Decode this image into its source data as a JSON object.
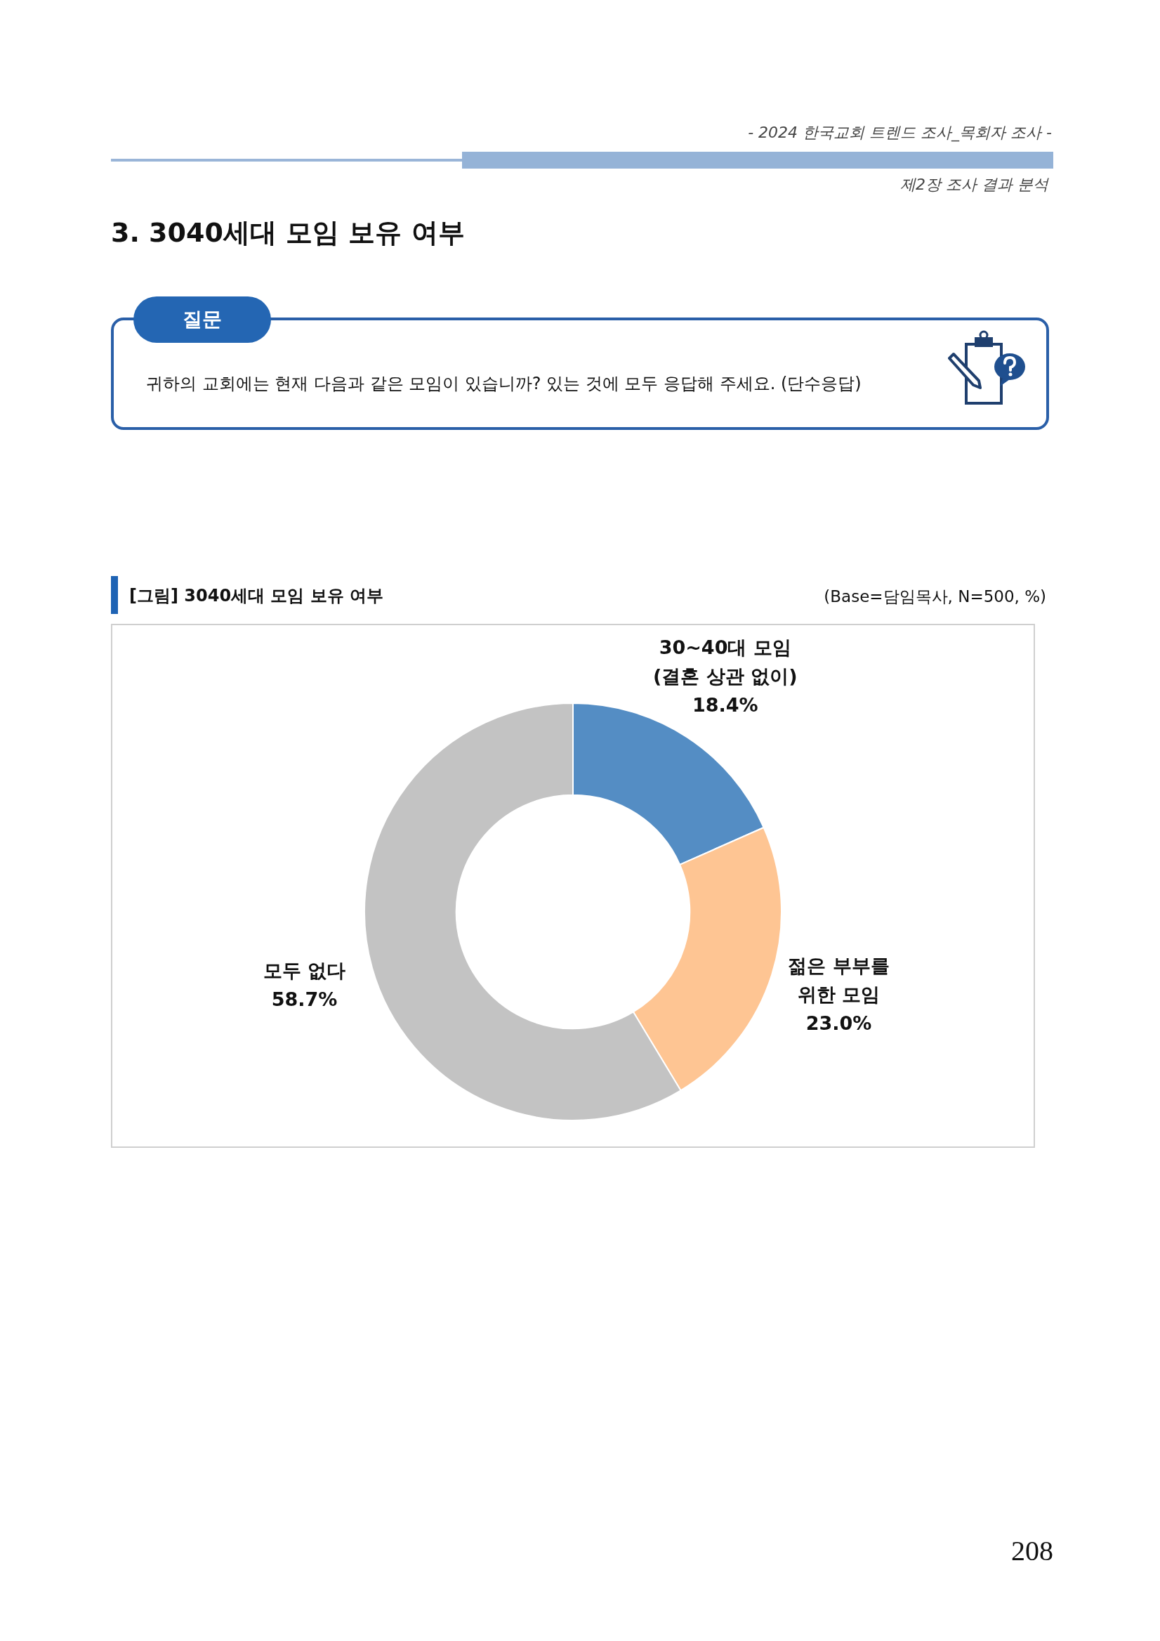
{
  "chart_data": {
    "type": "donut",
    "title": "[그림] 3040세대 모임 보유 여부",
    "categories": [
      "30~40대 모임\n(결혼 상관 없이)",
      "젊은 부부를\n위한 모임",
      "모두 없다"
    ],
    "values": [
      18.4,
      23.0,
      58.7
    ],
    "value_labels": [
      "18.4%",
      "23.0%",
      "58.7%"
    ],
    "colors": [
      "#548dc4",
      "#fec593",
      "#c3c3c3"
    ],
    "legend": false,
    "annotations": [
      "- 2024 한국교회 트렌드 조사_목회자 조사 -",
      "제2장 조사 결과 분석",
      "3. 3040세대 모임 보유 여부",
      "질문",
      "귀하의 교회에는 현재 다음과 같은 모임이 있습니까? 있는 것에 모두 응답해 주세요. (단수응답)",
      "(Base=담임목사, N=500, %)",
      "208"
    ]
  }
}
